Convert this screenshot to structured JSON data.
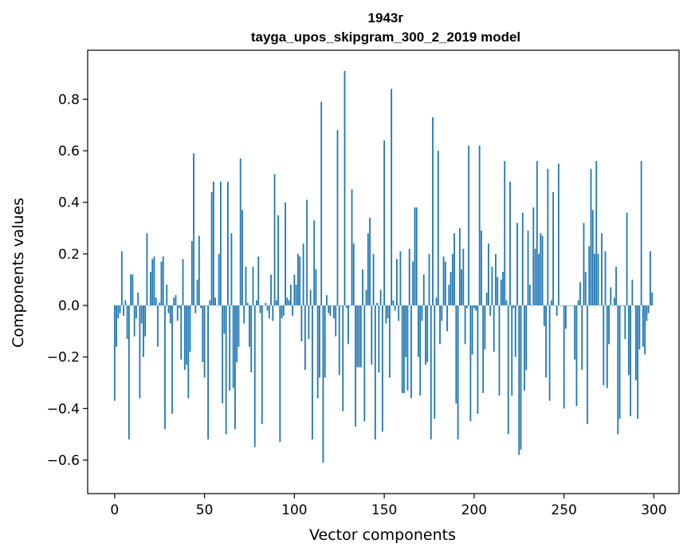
{
  "chart_data": {
    "type": "bar",
    "title_line1": "1943г",
    "title_line2": "tayga_upos_skipgram_300_2_2019 model",
    "xlabel": "Vector components",
    "ylabel": "Components values",
    "xlim": [
      -15,
      314
    ],
    "ylim": [
      -0.73,
      0.99
    ],
    "xticks": [
      0,
      50,
      100,
      150,
      200,
      250,
      300
    ],
    "xtick_labels": [
      "0",
      "50",
      "100",
      "150",
      "200",
      "250",
      "300"
    ],
    "yticks": [
      -0.6,
      -0.4,
      -0.2,
      0.0,
      0.2,
      0.4,
      0.6,
      0.8
    ],
    "ytick_labels": [
      "−0.6",
      "−0.4",
      "−0.2",
      "0.0",
      "0.2",
      "0.4",
      "0.6",
      "0.8"
    ],
    "bar_color": "#1f77b4",
    "values": [
      -0.37,
      -0.16,
      -0.05,
      -0.03,
      0.21,
      -0.04,
      0.02,
      -0.13,
      -0.52,
      0.12,
      0.12,
      -0.12,
      -0.05,
      0.05,
      -0.36,
      -0.07,
      -0.2,
      -0.12,
      0.28,
      0.0,
      0.13,
      0.18,
      0.19,
      0.03,
      -0.16,
      0.01,
      0.17,
      0.19,
      -0.48,
      0.08,
      -0.03,
      -0.07,
      -0.42,
      0.03,
      0.04,
      -0.06,
      -0.01,
      -0.21,
      0.18,
      -0.25,
      -0.23,
      -0.36,
      -0.18,
      0.25,
      0.59,
      -0.03,
      0.1,
      0.27,
      -0.01,
      -0.22,
      -0.28,
      0.0,
      -0.52,
      0.02,
      0.44,
      0.48,
      0.03,
      0.0,
      0.2,
      0.48,
      -0.38,
      -0.11,
      -0.5,
      0.48,
      -0.33,
      0.28,
      -0.32,
      -0.48,
      -0.22,
      -0.16,
      0.57,
      0.37,
      -0.07,
      0.15,
      0.01,
      -0.16,
      -0.26,
      0.15,
      -0.55,
      0.02,
      0.19,
      -0.03,
      -0.46,
      0.0,
      0.01,
      -0.02,
      -0.05,
      0.12,
      -0.06,
      0.51,
      0.02,
      0.35,
      -0.53,
      -0.05,
      -0.04,
      0.4,
      0.03,
      0.02,
      0.08,
      -0.04,
      0.12,
      0.08,
      0.2,
      0.19,
      -0.14,
      0.24,
      -0.25,
      0.41,
      -0.13,
      0.06,
      -0.52,
      0.33,
      0.14,
      -0.36,
      -0.28,
      0.79,
      -0.61,
      -0.28,
      0.04,
      -0.03,
      -0.04,
      0.0,
      -0.05,
      -0.12,
      0.68,
      -0.27,
      0.0,
      -0.41,
      0.91,
      -0.01,
      -0.15,
      0.0,
      0.45,
      0.24,
      -0.47,
      -0.24,
      -0.24,
      -0.24,
      0.14,
      -0.45,
      0.06,
      0.28,
      0.34,
      -0.23,
      0.2,
      -0.52,
      0.01,
      -0.26,
      0.06,
      -0.49,
      0.64,
      -0.07,
      -0.05,
      -0.28,
      0.84,
      0.02,
      -0.02,
      0.18,
      -0.06,
      0.21,
      -0.34,
      -0.34,
      -0.2,
      -0.33,
      0.22,
      -0.36,
      0.17,
      0.38,
      0.38,
      -0.2,
      -0.35,
      -0.06,
      0.12,
      -0.23,
      -0.22,
      0.2,
      -0.52,
      0.73,
      -0.44,
      0.03,
      0.6,
      -0.15,
      -0.06,
      0.19,
      0.17,
      -0.1,
      0.08,
      0.13,
      0.2,
      0.28,
      -0.38,
      -0.52,
      0.3,
      0.14,
      0.22,
      -0.15,
      -0.01,
      0.62,
      -0.45,
      -0.19,
      -0.01,
      -0.02,
      -0.42,
      0.62,
      0.29,
      -0.34,
      -0.17,
      0.05,
      0.24,
      -0.04,
      0.15,
      -0.18,
      0.2,
      0.11,
      -0.35,
      0.1,
      0.13,
      0.56,
      0.02,
      -0.5,
      0.48,
      -0.35,
      -0.01,
      -0.2,
      0.32,
      -0.58,
      -0.56,
      0.36,
      -0.33,
      -0.25,
      0.29,
      0.08,
      0.0,
      0.38,
      0.22,
      0.56,
      0.2,
      0.28,
      0.27,
      -0.08,
      -0.28,
      0.53,
      -0.37,
      0.02,
      0.44,
      0.0,
      -0.04,
      0.55,
      0.0,
      0.0,
      -0.4,
      -0.09,
      0.0,
      0.0,
      0.0,
      0.0,
      -0.21,
      -0.39,
      0.02,
      0.09,
      -0.25,
      0.32,
      0.13,
      -0.46,
      0.23,
      0.53,
      0.37,
      0.2,
      0.56,
      0.2,
      0.0,
      0.28,
      -0.31,
      0.21,
      -0.32,
      -0.15,
      0.07,
      0.0,
      0.03,
      0.15,
      -0.5,
      -0.44,
      0.0,
      0.0,
      -0.13,
      0.36,
      -0.27,
      -0.43,
      0.1,
      0.0,
      -0.29,
      -0.44,
      -0.17,
      0.56,
      -0.16,
      -0.19,
      -0.06,
      -0.03,
      0.21,
      0.05
    ]
  }
}
